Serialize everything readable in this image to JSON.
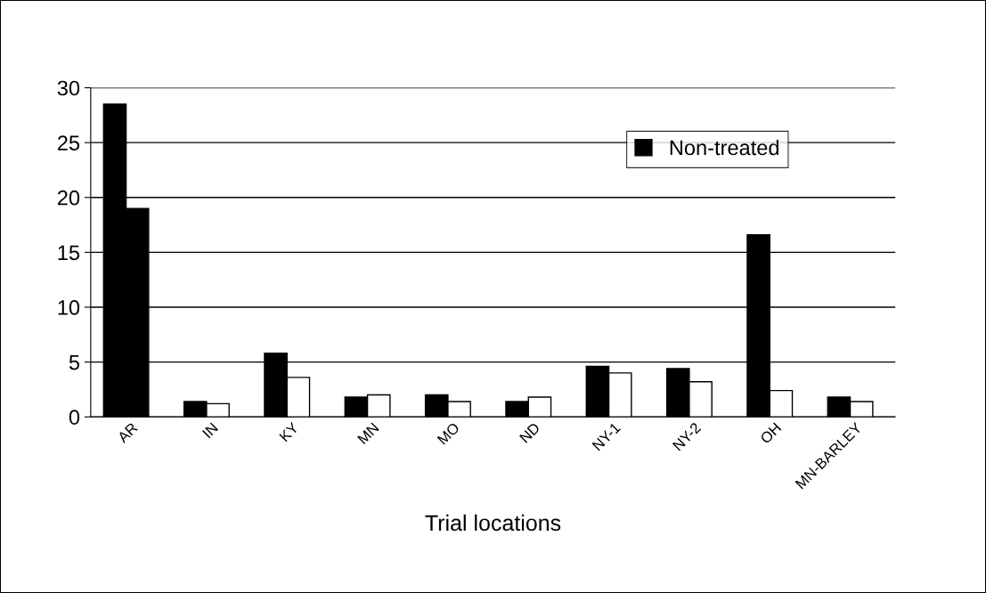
{
  "chart_data": {
    "type": "bar",
    "xlabel": "Trial locations",
    "categories": [
      "AR",
      "IN",
      "KY",
      "MN",
      "MO",
      "ND",
      "NY-1",
      "NY-2",
      "OH",
      "MN-BARLEY"
    ],
    "series": [
      {
        "name": "Non-treated",
        "color": "#000000",
        "values": [
          28.5,
          1.4,
          5.8,
          1.8,
          2.0,
          1.4,
          4.6,
          4.4,
          16.6,
          1.8
        ]
      },
      {
        "colors": [
          "#000000",
          "#ffffff",
          "#ffffff",
          "#ffffff",
          "#ffffff",
          "#ffffff",
          "#ffffff",
          "#ffffff",
          "#ffffff",
          "#ffffff"
        ],
        "values": [
          19.0,
          1.2,
          3.6,
          2.0,
          1.4,
          1.8,
          4.0,
          3.2,
          2.4,
          1.4
        ]
      }
    ],
    "ylim": [
      0,
      30
    ],
    "yticks": [
      0,
      5,
      10,
      15,
      20,
      25,
      30
    ],
    "grid": "y",
    "legend": "top right"
  }
}
